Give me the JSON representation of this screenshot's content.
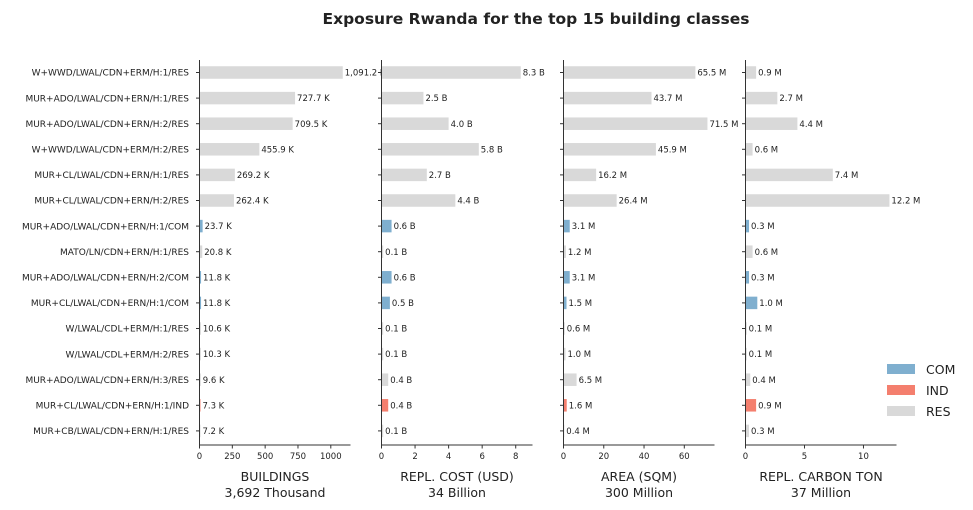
{
  "chart_data": {
    "type": "bar",
    "orientation": "horizontal",
    "title": "Exposure Rwanda for the top 15 building classes",
    "categories": [
      "W+WWD/LWAL/CDN+ERM/H:1/RES",
      "MUR+ADO/LWAL/CDN+ERN/H:1/RES",
      "MUR+ADO/LWAL/CDN+ERN/H:2/RES",
      "W+WWD/LWAL/CDN+ERM/H:2/RES",
      "MUR+CL/LWAL/CDN+ERN/H:1/RES",
      "MUR+CL/LWAL/CDN+ERN/H:2/RES",
      "MUR+ADO/LWAL/CDN+ERN/H:1/COM",
      "MATO/LN/CDN+ERN/H:1/RES",
      "MUR+ADO/LWAL/CDN+ERN/H:2/COM",
      "MUR+CL/LWAL/CDN+ERN/H:1/COM",
      "W/LWAL/CDL+ERM/H:1/RES",
      "W/LWAL/CDL+ERM/H:2/RES",
      "MUR+ADO/LWAL/CDN+ERN/H:3/RES",
      "MUR+CL/LWAL/CDN+ERN/H:1/IND",
      "MUR+CB/LWAL/CDN+ERN/H:1/RES"
    ],
    "occupancy": [
      "RES",
      "RES",
      "RES",
      "RES",
      "RES",
      "RES",
      "COM",
      "RES",
      "COM",
      "COM",
      "RES",
      "RES",
      "RES",
      "IND",
      "RES"
    ],
    "colors": {
      "COM": "#7fafcf",
      "IND": "#f47f6e",
      "RES": "#d9d9d9"
    },
    "legend": {
      "position": "right",
      "entries": [
        "COM",
        "IND",
        "RES"
      ]
    },
    "grid": false,
    "panels": [
      {
        "name": "BUILDINGS",
        "xlabel": "BUILDINGS",
        "total": "3,692 Thousand",
        "unit": "Thousand",
        "xlim": [
          0,
          1150
        ],
        "ticks": [
          0,
          250,
          500,
          750,
          1000
        ],
        "values": [
          1091.2,
          727.7,
          709.5,
          455.9,
          269.2,
          262.4,
          23.7,
          20.8,
          11.8,
          11.8,
          10.6,
          10.3,
          9.6,
          7.3,
          7.2
        ],
        "labels": [
          "1,091.2 K",
          "727.7 K",
          "709.5 K",
          "455.9 K",
          "269.2 K",
          "262.4 K",
          "23.7 K",
          "20.8 K",
          "11.8 K",
          "11.8 K",
          "10.6 K",
          "10.3 K",
          "9.6 K",
          "7.3 K",
          "7.2 K"
        ]
      },
      {
        "name": "REPL. COST (USD)",
        "xlabel": "REPL. COST (USD)",
        "total": "34 Billion",
        "unit": "Billion",
        "xlim": [
          0,
          9
        ],
        "ticks": [
          0,
          2,
          4,
          6,
          8
        ],
        "values": [
          8.3,
          2.5,
          4.0,
          5.8,
          2.7,
          4.4,
          0.6,
          0.1,
          0.6,
          0.5,
          0.1,
          0.1,
          0.4,
          0.4,
          0.1
        ],
        "labels": [
          "8.3 B",
          "2.5 B",
          "4.0 B",
          "5.8 B",
          "2.7 B",
          "4.4 B",
          "0.6 B",
          "0.1 B",
          "0.6 B",
          "0.5 B",
          "0.1 B",
          "0.1 B",
          "0.4 B",
          "0.4 B",
          "0.1 B"
        ]
      },
      {
        "name": "AREA (SQM)",
        "xlabel": "AREA (SQM)",
        "total": "300 Million",
        "unit": "Million",
        "xlim": [
          0,
          75
        ],
        "ticks": [
          0,
          20,
          40,
          60
        ],
        "values": [
          65.5,
          43.7,
          71.5,
          45.9,
          16.2,
          26.4,
          3.1,
          1.2,
          3.1,
          1.5,
          0.6,
          1.0,
          6.5,
          1.6,
          0.4
        ],
        "labels": [
          "65.5 M",
          "43.7 M",
          "71.5 M",
          "45.9 M",
          "16.2 M",
          "26.4 M",
          "3.1 M",
          "1.2 M",
          "3.1 M",
          "1.5 M",
          "0.6 M",
          "1.0 M",
          "6.5 M",
          "1.6 M",
          "0.4 M"
        ]
      },
      {
        "name": "REPL. CARBON TON",
        "xlabel": "REPL. CARBON TON",
        "total": "37 Million",
        "unit": "Million",
        "xlim": [
          0,
          12.8
        ],
        "ticks": [
          0,
          5,
          10
        ],
        "values": [
          0.9,
          2.7,
          4.4,
          0.6,
          7.4,
          12.2,
          0.3,
          0.6,
          0.3,
          1.0,
          0.1,
          0.1,
          0.4,
          0.9,
          0.3
        ],
        "labels": [
          "0.9 M",
          "2.7 M",
          "4.4 M",
          "0.6 M",
          "7.4 M",
          "12.2 M",
          "0.3 M",
          "0.6 M",
          "0.3 M",
          "1.0 M",
          "0.1 M",
          "0.1 M",
          "0.4 M",
          "0.9 M",
          "0.3 M"
        ]
      }
    ]
  }
}
